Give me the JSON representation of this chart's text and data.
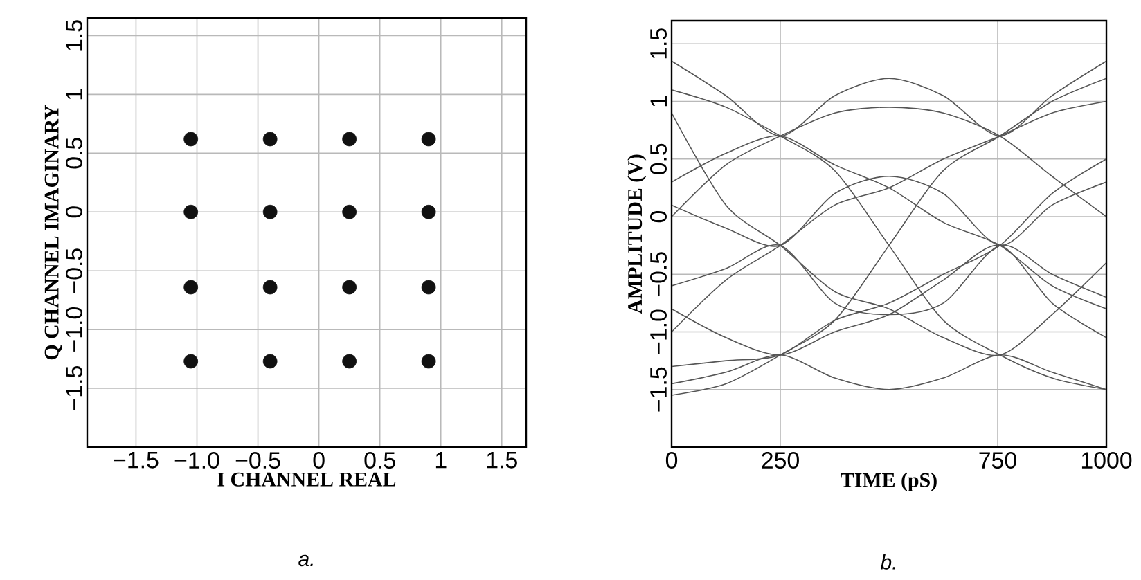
{
  "chart_data": [
    {
      "type": "scatter",
      "xlabel": "I CHANNEL REAL",
      "ylabel": "Q CHANNEL IMAGINARY",
      "annotations": [
        "a."
      ],
      "xlim": [
        -1.9,
        1.7
      ],
      "ylim": [
        -2.0,
        1.65
      ],
      "xticks": [
        {
          "value": -1.5,
          "label": "−1.5"
        },
        {
          "value": -1.0,
          "label": "−1.0"
        },
        {
          "value": -0.5,
          "label": "−0.5"
        },
        0,
        0.5,
        1,
        1.5
      ],
      "yticks": [
        {
          "value": -1.5,
          "label": "−1.5"
        },
        {
          "value": -1.0,
          "label": "−1.0"
        },
        {
          "value": -0.5,
          "label": "−0.5"
        },
        0,
        0.5,
        1,
        1.5
      ],
      "grid": true,
      "marker": "circle",
      "series": [
        {
          "color": "#111111",
          "x": [
            -1.05,
            -0.4,
            0.25,
            0.9,
            -1.05,
            -0.4,
            0.25,
            0.9,
            -1.05,
            -0.4,
            0.25,
            0.9,
            -1.05,
            -0.4,
            0.25,
            0.9
          ],
          "values": [
            0.62,
            0.62,
            0.62,
            0.62,
            0,
            0,
            0,
            0,
            -0.64,
            -0.64,
            -0.64,
            -0.64,
            -1.27,
            -1.27,
            -1.27,
            -1.27
          ]
        }
      ]
    },
    {
      "type": "line",
      "xlabel": "TIME (pS)",
      "ylabel": "AMPLITUDE (V)",
      "annotations": [
        "b."
      ],
      "xlim": [
        0,
        1000
      ],
      "ylim": [
        -2.0,
        1.7
      ],
      "xticks": [
        0,
        250,
        750,
        1000
      ],
      "yticks": [
        {
          "value": -1.5,
          "label": "−1.5"
        },
        {
          "value": -1.0,
          "label": "−1.0"
        },
        {
          "value": -0.5,
          "label": "−0.5"
        },
        0,
        0.5,
        1,
        1.5
      ],
      "grid": true,
      "x": [
        0,
        125,
        250,
        375,
        500,
        625,
        755,
        875,
        1000
      ],
      "series": [
        {
          "color": "#555555",
          "values": [
            1.35,
            1.05,
            0.7,
            1.05,
            1.2,
            1.05,
            0.7,
            1.05,
            1.35
          ]
        },
        {
          "color": "#555555",
          "values": [
            1.1,
            0.95,
            0.7,
            0.4,
            -0.25,
            -0.9,
            -1.2,
            -1.4,
            -1.5
          ]
        },
        {
          "color": "#555555",
          "values": [
            -1.55,
            -1.45,
            -1.2,
            -0.9,
            -0.25,
            0.4,
            0.7,
            1.0,
            1.2
          ]
        },
        {
          "color": "#555555",
          "values": [
            0.1,
            -0.1,
            -0.25,
            0.2,
            0.35,
            0.2,
            -0.25,
            0.1,
            0.3
          ]
        },
        {
          "color": "#555555",
          "values": [
            -0.6,
            -0.45,
            -0.25,
            -0.75,
            -0.85,
            -0.75,
            -0.25,
            -0.5,
            -0.7
          ]
        },
        {
          "color": "#555555",
          "values": [
            0.3,
            0.55,
            0.7,
            0.45,
            0.25,
            -0.05,
            -0.25,
            -0.6,
            -0.8
          ]
        },
        {
          "color": "#555555",
          "values": [
            -1.0,
            -0.55,
            -0.25,
            0.1,
            0.25,
            0.5,
            0.7,
            0.9,
            1.0
          ]
        },
        {
          "color": "#555555",
          "values": [
            -1.45,
            -1.35,
            -1.2,
            -1.4,
            -1.5,
            -1.4,
            -1.2,
            -1.35,
            -1.5
          ]
        },
        {
          "color": "#555555",
          "values": [
            0.9,
            0.1,
            -0.25,
            -0.65,
            -0.8,
            -1.05,
            -1.2,
            -0.85,
            -0.4
          ]
        },
        {
          "color": "#555555",
          "values": [
            -1.3,
            -1.25,
            -1.2,
            -0.9,
            -0.75,
            -0.5,
            -0.25,
            0.2,
            0.5
          ]
        },
        {
          "color": "#555555",
          "values": [
            0.0,
            0.45,
            0.7,
            0.9,
            0.95,
            0.9,
            0.7,
            0.35,
            0.0
          ]
        },
        {
          "color": "#555555",
          "values": [
            -0.8,
            -1.05,
            -1.2,
            -1.0,
            -0.85,
            -0.55,
            -0.25,
            -0.75,
            -1.05
          ]
        }
      ]
    }
  ]
}
